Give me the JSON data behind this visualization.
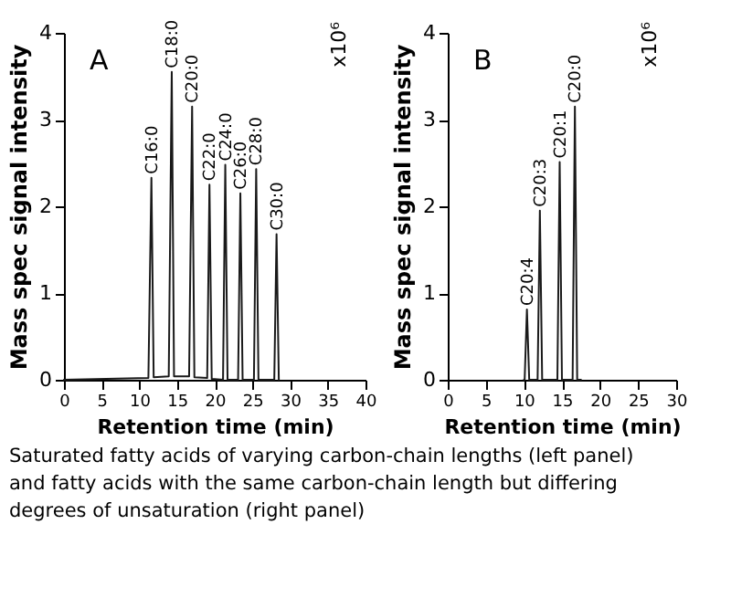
{
  "chart_data": [
    {
      "type": "line",
      "title": "A",
      "xlabel": "Retention time (min)",
      "ylabel": "Mass spec signal intensity",
      "xlim": [
        0,
        40
      ],
      "ylim": [
        0,
        4
      ],
      "xticks": [
        0,
        5,
        10,
        15,
        20,
        25,
        30,
        35,
        40
      ],
      "yticks": [
        0,
        1,
        2,
        3,
        4
      ],
      "series": [
        {
          "color": "#1a1a1a",
          "x": [
            0,
            11.2,
            11.6,
            11.9,
            13.9,
            14.3,
            14.6,
            16.6,
            17.0,
            17.3,
            19.0,
            19.3,
            19.6,
            21.1,
            21.4,
            21.7,
            23.1,
            23.4,
            23.7,
            25.2,
            25.5,
            25.8,
            27.9,
            28.2,
            28.5
          ],
          "values": [
            0,
            0.02,
            2.33,
            0.03,
            0.04,
            3.55,
            0.04,
            0.04,
            3.15,
            0.03,
            0.02,
            2.25,
            0.01,
            0,
            2.48,
            0,
            0,
            2.15,
            0,
            0,
            2.43,
            0,
            0,
            1.68,
            0
          ]
        }
      ],
      "annotations": [
        "x10⁶",
        "Saturated fatty acids of varying carbon-chain lengths (left panel) and fatty acids with the same carbon-chain length but differing degrees of unsaturation (right panel)",
        {
          "text": "C16:0",
          "x": 11.6,
          "y": 2.33
        },
        {
          "text": "C18:0",
          "x": 14.3,
          "y": 3.55
        },
        {
          "text": "C20:0",
          "x": 17.0,
          "y": 3.15
        },
        {
          "text": "C22:0",
          "x": 19.3,
          "y": 2.25
        },
        {
          "text": "C24:0",
          "x": 21.4,
          "y": 2.48
        },
        {
          "text": "C26:0",
          "x": 23.4,
          "y": 2.15
        },
        {
          "text": "C28:0",
          "x": 25.5,
          "y": 2.43
        },
        {
          "text": "C30:0",
          "x": 28.2,
          "y": 1.68
        }
      ]
    },
    {
      "type": "line",
      "title": "B",
      "xlabel": "Retention time (min)",
      "ylabel": "Mass spec signal intensity",
      "xlim": [
        0,
        30
      ],
      "ylim": [
        0,
        4
      ],
      "xticks": [
        0,
        5,
        10,
        15,
        20,
        25,
        30
      ],
      "yticks": [
        0,
        1,
        2,
        3,
        4
      ],
      "series": [
        {
          "color": "#1a1a1a",
          "x": [
            10.0,
            10.1,
            10.4,
            10.7,
            11.8,
            12.1,
            12.4,
            14.4,
            14.7,
            15.0,
            16.4,
            16.7,
            17.0,
            17.5
          ],
          "values": [
            0,
            0,
            0.81,
            0,
            0,
            1.95,
            0,
            0,
            2.51,
            0,
            0,
            3.15,
            0,
            0
          ]
        }
      ],
      "annotations": [
        "x10⁶",
        {
          "text": "C20:4",
          "x": 10.4,
          "y": 0.81
        },
        {
          "text": "C20:3",
          "x": 12.1,
          "y": 1.95
        },
        {
          "text": "C20:1",
          "x": 14.7,
          "y": 2.51
        },
        {
          "text": "C20:0",
          "x": 16.7,
          "y": 3.15
        }
      ]
    }
  ]
}
